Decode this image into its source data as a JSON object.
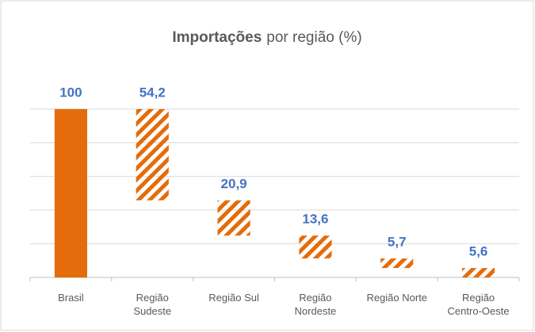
{
  "chart_data": {
    "type": "waterfall",
    "title_parts": [
      "Importações",
      "por região (%)"
    ],
    "categories": [
      "Brasil",
      "Região Sudeste",
      "Região Sul",
      "Região Nordeste",
      "Região Norte",
      "Região Centro-Oeste"
    ],
    "values": [
      100,
      54.2,
      20.9,
      13.6,
      5.7,
      5.6
    ],
    "value_labels": [
      "100",
      "54,2",
      "20,9",
      "13,6",
      "5,7",
      "5,6"
    ],
    "color": "#E46C0A",
    "label_color": "#4472C4",
    "ylim": [
      0,
      100
    ],
    "yticks": [
      0,
      20,
      40,
      60,
      80,
      100
    ],
    "grid": true
  }
}
